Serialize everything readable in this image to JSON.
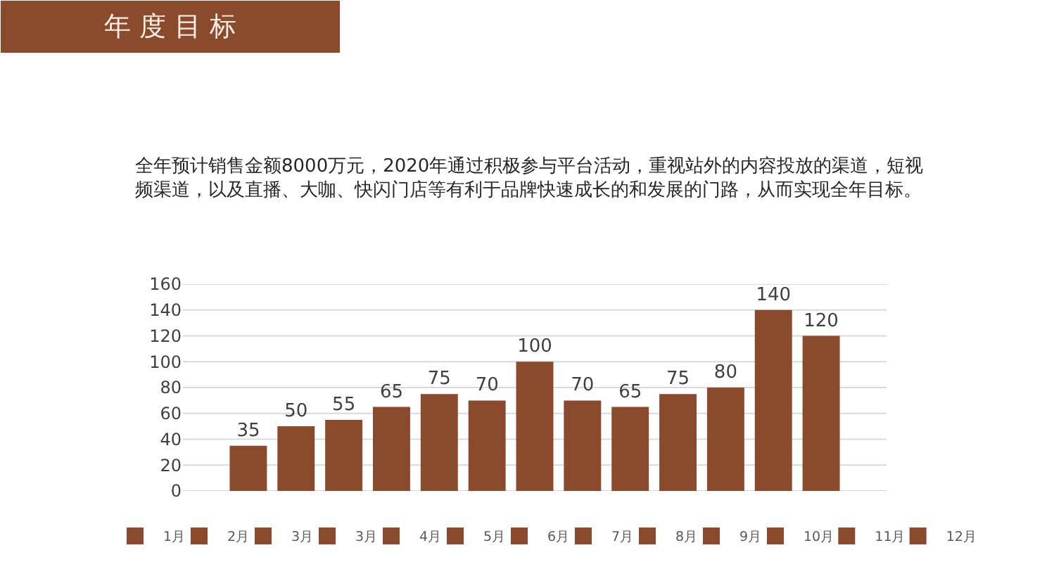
{
  "chart_data": {
    "type": "bar",
    "title": "年 度 目 标",
    "subtitle": "全年预计销售金额8000万元，2020年通过积极参与平台活动，重视站外的内容投放的渠道，短视频渠道，以及直播、大咖、快闪门店等有利于品牌快速成长的和发展的门路，从而实现全年目标。",
    "categories": [
      null
    ],
    "series": [
      {
        "name": "1月",
        "color": "#8b4a2b",
        "values": [
          35
        ]
      },
      {
        "name": "2月",
        "color": "#8b4a2b",
        "values": [
          50
        ]
      },
      {
        "name": "3月",
        "color": "#8b4a2b",
        "values": [
          55
        ]
      },
      {
        "name": "3月",
        "color": "#8b4a2b",
        "values": [
          65
        ]
      },
      {
        "name": "4月",
        "color": "#8b4a2b",
        "values": [
          75
        ]
      },
      {
        "name": "5月",
        "color": "#8b4a2b",
        "values": [
          70
        ]
      },
      {
        "name": "6月",
        "color": "#8b4a2b",
        "values": [
          100
        ]
      },
      {
        "name": "7月",
        "color": "#8b4a2b",
        "values": [
          70
        ]
      },
      {
        "name": "8月",
        "color": "#8b4a2b",
        "values": [
          65
        ]
      },
      {
        "name": "9月",
        "color": "#8b4a2b",
        "values": [
          75
        ]
      },
      {
        "name": "10月",
        "color": "#8b4a2b",
        "values": [
          80
        ]
      },
      {
        "name": "11月",
        "color": "#8b4a2b",
        "values": [
          140
        ]
      },
      {
        "name": "12月",
        "color": "#8b4a2b",
        "values": [
          120
        ]
      }
    ],
    "ylim": [
      0,
      160
    ],
    "yticks": [
      0,
      20,
      40,
      60,
      80,
      100,
      120,
      140,
      160
    ],
    "grid": "y",
    "legend": "bottom",
    "data_labels": true,
    "tick_labels": "y"
  }
}
